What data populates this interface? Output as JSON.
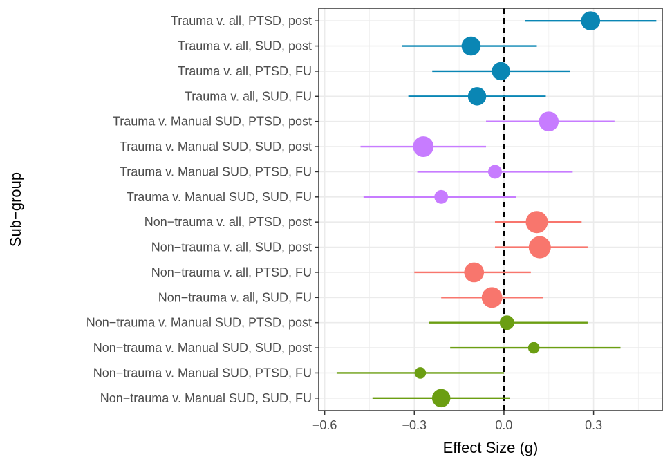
{
  "chart_data": {
    "type": "forest",
    "xlabel": "Effect Size (g)",
    "ylabel": "Sub−group",
    "xlim": [
      -0.62,
      0.53
    ],
    "xticks": [
      -0.6,
      -0.3,
      0.0,
      0.3
    ],
    "xtick_labels": [
      "−0.6",
      "−0.3",
      "0.0",
      "0.3"
    ],
    "reference_line": 0,
    "grid": true,
    "colors": {
      "trauma_all": "#0a86b4",
      "trauma_manual": "#c77cff",
      "nontrauma_all": "#f8766d",
      "nontrauma_manual": "#6b9e12"
    },
    "rows": [
      {
        "label": "Trauma v. all, PTSD, post",
        "estimate": 0.29,
        "ci_low": 0.07,
        "ci_high": 0.51,
        "weight": 0.8,
        "color_key": "trauma_all"
      },
      {
        "label": "Trauma v. all, SUD, post",
        "estimate": -0.11,
        "ci_low": -0.34,
        "ci_high": 0.11,
        "weight": 0.8,
        "color_key": "trauma_all"
      },
      {
        "label": "Trauma v. all, PTSD, FU",
        "estimate": -0.01,
        "ci_low": -0.24,
        "ci_high": 0.22,
        "weight": 0.75,
        "color_key": "trauma_all"
      },
      {
        "label": "Trauma v. all, SUD, FU",
        "estimate": -0.09,
        "ci_low": -0.32,
        "ci_high": 0.14,
        "weight": 0.75,
        "color_key": "trauma_all"
      },
      {
        "label": "Trauma v. Manual SUD, PTSD, post",
        "estimate": 0.15,
        "ci_low": -0.06,
        "ci_high": 0.37,
        "weight": 0.85,
        "color_key": "trauma_manual"
      },
      {
        "label": "Trauma v. Manual SUD, SUD, post",
        "estimate": -0.27,
        "ci_low": -0.48,
        "ci_high": -0.06,
        "weight": 0.9,
        "color_key": "trauma_manual"
      },
      {
        "label": "Trauma v. Manual SUD, PTSD, FU",
        "estimate": -0.03,
        "ci_low": -0.29,
        "ci_high": 0.23,
        "weight": 0.45,
        "color_key": "trauma_manual"
      },
      {
        "label": "Trauma v. Manual SUD, SUD, FU",
        "estimate": -0.21,
        "ci_low": -0.47,
        "ci_high": 0.04,
        "weight": 0.45,
        "color_key": "trauma_manual"
      },
      {
        "label": "Non−trauma v. all, PTSD, post",
        "estimate": 0.11,
        "ci_low": -0.03,
        "ci_high": 0.26,
        "weight": 1.0,
        "color_key": "nontrauma_all"
      },
      {
        "label": "Non−trauma v. all, SUD, post",
        "estimate": 0.12,
        "ci_low": -0.03,
        "ci_high": 0.28,
        "weight": 1.0,
        "color_key": "nontrauma_all"
      },
      {
        "label": "Non−trauma v. all, PTSD, FU",
        "estimate": -0.1,
        "ci_low": -0.3,
        "ci_high": 0.09,
        "weight": 0.85,
        "color_key": "nontrauma_all"
      },
      {
        "label": "Non−trauma v. all, SUD, FU",
        "estimate": -0.04,
        "ci_low": -0.21,
        "ci_high": 0.13,
        "weight": 0.9,
        "color_key": "nontrauma_all"
      },
      {
        "label": "Non−trauma v. Manual SUD, PTSD, post",
        "estimate": 0.01,
        "ci_low": -0.25,
        "ci_high": 0.28,
        "weight": 0.5,
        "color_key": "nontrauma_manual"
      },
      {
        "label": "Non−trauma v. Manual SUD, SUD, post",
        "estimate": 0.1,
        "ci_low": -0.18,
        "ci_high": 0.39,
        "weight": 0.3,
        "color_key": "nontrauma_manual"
      },
      {
        "label": "Non−trauma v. Manual SUD, PTSD, FU",
        "estimate": -0.28,
        "ci_low": -0.56,
        "ci_high": 0.0,
        "weight": 0.3,
        "color_key": "nontrauma_manual"
      },
      {
        "label": "Non−trauma v. Manual SUD, SUD, FU",
        "estimate": -0.21,
        "ci_low": -0.44,
        "ci_high": 0.02,
        "weight": 0.75,
        "color_key": "nontrauma_manual"
      }
    ]
  }
}
